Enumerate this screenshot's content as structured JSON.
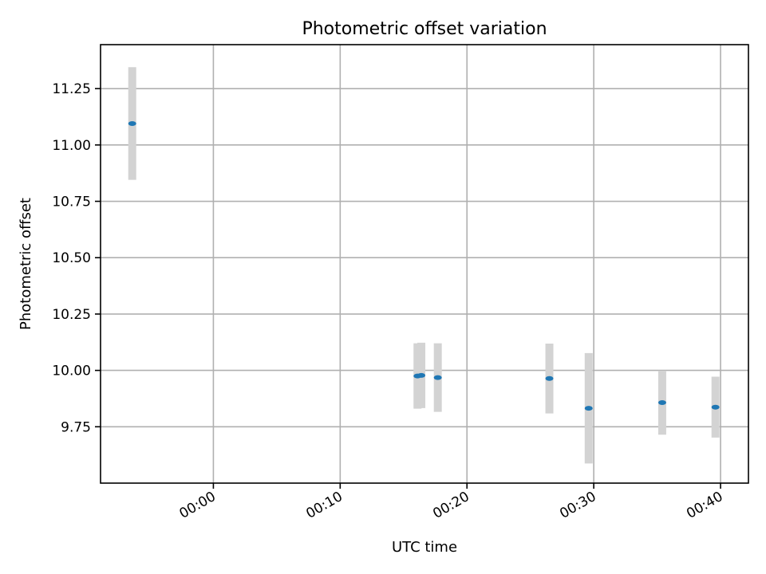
{
  "chart_data": {
    "type": "scatter",
    "title": "Photometric offset variation",
    "xlabel": "UTC time",
    "ylabel": "Photometric offset",
    "x_unit": "minutes",
    "xlim": [
      -8.9,
      42.2
    ],
    "ylim": [
      9.5,
      11.445
    ],
    "x_ticks": [
      {
        "value": 0,
        "label": "00:00"
      },
      {
        "value": 10,
        "label": "00:10"
      },
      {
        "value": 20,
        "label": "00:20"
      },
      {
        "value": 30,
        "label": "00:30"
      },
      {
        "value": 40,
        "label": "00:40"
      }
    ],
    "y_ticks": [
      {
        "value": 9.75,
        "label": "9.75"
      },
      {
        "value": 10.0,
        "label": "10.00"
      },
      {
        "value": 10.25,
        "label": "10.25"
      },
      {
        "value": 10.5,
        "label": "10.50"
      },
      {
        "value": 10.75,
        "label": "10.75"
      },
      {
        "value": 11.0,
        "label": "11.00"
      },
      {
        "value": 11.25,
        "label": "11.25"
      }
    ],
    "grid": true,
    "marker_color": "#1f77b4",
    "errorbar_color": "#d3d3d3",
    "points": [
      {
        "x": -6.4,
        "y": 11.095,
        "err": 0.25
      },
      {
        "x": 16.1,
        "y": 9.975,
        "err": 0.145
      },
      {
        "x": 16.4,
        "y": 9.978,
        "err": 0.145
      },
      {
        "x": 17.7,
        "y": 9.968,
        "err": 0.152
      },
      {
        "x": 26.5,
        "y": 9.964,
        "err": 0.155
      },
      {
        "x": 29.6,
        "y": 9.832,
        "err": 0.245
      },
      {
        "x": 35.4,
        "y": 9.857,
        "err": 0.142
      },
      {
        "x": 39.6,
        "y": 9.837,
        "err": 0.135
      }
    ]
  }
}
